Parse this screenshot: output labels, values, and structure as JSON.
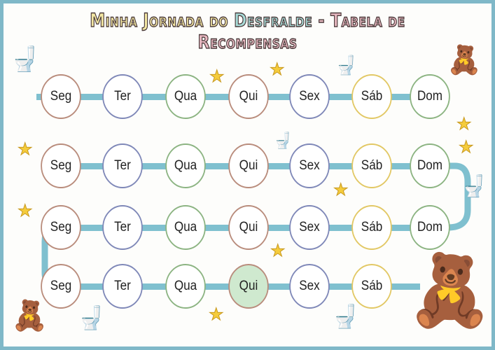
{
  "title": {
    "part1": "Minha Jornada do",
    "part2": "Desfralde",
    "part3": "- Tabela de Recompensas"
  },
  "rows": [
    {
      "days": [
        "Seg",
        "Ter",
        "Qua",
        "Qui",
        "Sex",
        "Sáb",
        "Dom"
      ]
    },
    {
      "days": [
        "Seg",
        "Ter",
        "Qua",
        "Qui",
        "Sex",
        "Sáb",
        "Dom"
      ]
    },
    {
      "days": [
        "Seg",
        "Ter",
        "Qua",
        "Qui",
        "Sex",
        "Sáb",
        "Dom"
      ]
    },
    {
      "days": [
        "Seg",
        "Ter",
        "Qua",
        "Qui",
        "Sex",
        "Sáb"
      ]
    }
  ],
  "completed": [
    {
      "row": 4,
      "day": "Qui"
    }
  ],
  "colors": {
    "frame": "#7fb8c8",
    "track": "#7fc0cf",
    "completed_fill": "#cfe9cf",
    "star": "#f5cc3c",
    "day_borders": [
      "#b98c7c",
      "#7f88b8",
      "#8cb482",
      "#b98c7c",
      "#7f88b8",
      "#e2c865",
      "#8cb482"
    ]
  },
  "decorations": [
    "toilet-icon",
    "star-icon",
    "teddy-bear-icon"
  ]
}
